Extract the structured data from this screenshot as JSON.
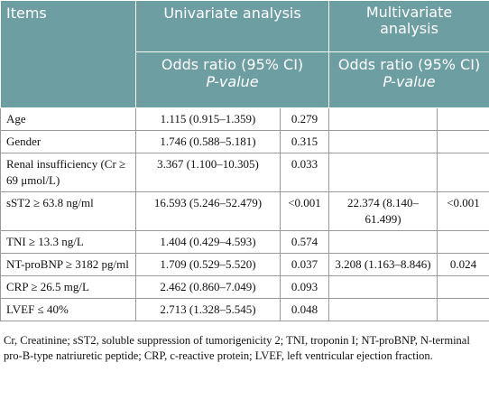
{
  "header": {
    "items": "Items",
    "univariate": "Univariate analysis",
    "multivariate": "Multivariate analysis",
    "uni_sub": {
      "or": "Odds ratio (95% CI)",
      "p": "P-value"
    },
    "multi_sub": {
      "or": "Odds ratio (95% CI)",
      "p": "P-value"
    }
  },
  "table": {
    "rows": [
      [
        "Age",
        "1.115 (0.915–1.359)",
        "0.279",
        null,
        null
      ],
      [
        "Gender",
        "1.746 (0.588–5.181)",
        "0.315",
        null,
        null
      ],
      [
        "Renal insufficiency (Cr ≥ 69 μmol/L)",
        "3.367 (1.100–10.305)",
        "0.033",
        null,
        null
      ],
      [
        "sST2 ≥ 63.8 ng/ml",
        "16.593 (5.246–52.479)",
        "<0.001",
        "22.374 (8.140–61.499)",
        "<0.001"
      ],
      [
        "TNI ≥ 13.3 ng/L",
        "1.404 (0.429–4.593)",
        "0.574",
        null,
        null
      ],
      [
        "NT-proBNP ≥ 3182 pg/ml",
        "1.709 (0.529–5.520)",
        "0.037",
        "3.208 (1.163–8.846)",
        "0.024"
      ],
      [
        "CRP ≥ 26.5 mg/L",
        "2.462 (0.860–7.049)",
        "0.093",
        null,
        null
      ],
      [
        "LVEF ≤ 40%",
        "2.713 (1.328–5.545)",
        "0.048",
        null,
        null
      ]
    ]
  },
  "footnote": "Cr, Creatinine; sST2, soluble suppression of tumorigenicity 2; TNI, troponin I; NT-proBNP, N-terminal pro-B-type natriuretic peptide; CRP, c-reactive protein; LVEF, left ventricular ejection fraction."
}
